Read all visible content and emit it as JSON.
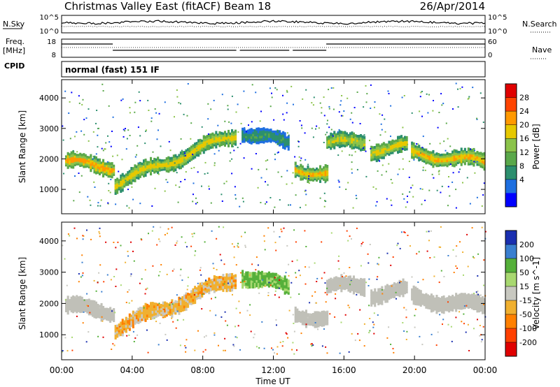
{
  "header": {
    "title": "Christmas Valley East (fitACF)",
    "beam": "Beam 18",
    "date": "26/Apr/2014"
  },
  "params": {
    "nsky_label": "N.Sky",
    "nsky_ticks": [
      "10^5",
      "10^0"
    ],
    "nsky_right_ticks": [
      "10^5",
      "10^0"
    ],
    "nsearch_label": "N.Search",
    "freq_label": "Freq.",
    "freq_unit": "[MHz]",
    "freq_ticks": [
      "18",
      "8"
    ],
    "nave_label": "Nave",
    "nave_ticks": [
      "60",
      "0"
    ],
    "cpid_label": "CPID",
    "cpid_text": "normal (fast) 151 IF"
  },
  "chart_data": [
    {
      "type": "heatmap",
      "title": "Power",
      "xlabel": "Time UT",
      "ylabel": "Slant Range [km]",
      "xlim": [
        "00:00",
        "24:00"
      ],
      "ylim": [
        200,
        4600
      ],
      "x_ticks": [
        "00:00",
        "04:00",
        "08:00",
        "12:00",
        "16:00",
        "20:00",
        "00:00"
      ],
      "y_ticks": [
        1000,
        2000,
        3000,
        4000
      ],
      "colorbar": {
        "label": "Power [dB]",
        "ticks": [
          4,
          8,
          12,
          16,
          20,
          24,
          28
        ],
        "colors": [
          "#0000ff",
          "#1e6fe0",
          "#2c8f6e",
          "#5aa84a",
          "#8bc34a",
          "#e6c800",
          "#ff9900",
          "#ff4400",
          "#e00000"
        ]
      },
      "data_gaps_hours": [
        [
          9.9,
          10.1
        ],
        [
          12.9,
          13.1
        ],
        [
          17.2,
          17.3
        ],
        [
          19.6,
          19.7
        ]
      ],
      "bands": [
        {
          "t_start": 0.2,
          "t_end": 2.9,
          "range_start": 1900,
          "range_end": 1750,
          "level_db": 26
        },
        {
          "t_start": 3.0,
          "t_end": 9.8,
          "range_start": 1200,
          "range_end": 2800,
          "level_db": 22
        },
        {
          "t_start": 10.2,
          "t_end": 12.8,
          "range_start": 2900,
          "range_end": 2500,
          "level_db": 10
        },
        {
          "t_start": 13.2,
          "t_end": 15.0,
          "range_start": 1700,
          "range_end": 1500,
          "level_db": 24
        },
        {
          "t_start": 15.0,
          "t_end": 17.1,
          "range_start": 2500,
          "range_end": 2600,
          "level_db": 20
        },
        {
          "t_start": 17.5,
          "t_end": 19.5,
          "range_start": 2300,
          "range_end": 2400,
          "level_db": 22
        },
        {
          "t_start": 19.8,
          "t_end": 23.9,
          "range_start": 2200,
          "range_end": 1900,
          "level_db": 24
        }
      ]
    },
    {
      "type": "heatmap",
      "title": "Velocity",
      "xlabel": "Time UT",
      "ylabel": "Slant Range [km]",
      "xlim": [
        "00:00",
        "24:00"
      ],
      "ylim": [
        200,
        4600
      ],
      "x_ticks": [
        "00:00",
        "04:00",
        "08:00",
        "12:00",
        "16:00",
        "20:00",
        "00:00"
      ],
      "y_ticks": [
        1000,
        2000,
        3000,
        4000
      ],
      "colorbar": {
        "label": "Velocity [m s^-1]",
        "ticks": [
          200,
          100,
          50,
          15,
          -15,
          -50,
          -100,
          -200
        ],
        "colors": [
          "#1a2fb0",
          "#3a7fd0",
          "#55b03a",
          "#a8d870",
          "#c8c8c0",
          "#f0b030",
          "#ff8000",
          "#ff4000",
          "#e00000"
        ]
      },
      "ground_scatter_color": "#c0c0b8",
      "bands": [
        {
          "t_start": 0.2,
          "t_end": 2.9,
          "range_start": 1900,
          "range_end": 1750,
          "velocity": 0
        },
        {
          "t_start": 3.0,
          "t_end": 9.8,
          "range_start": 1200,
          "range_end": 2800,
          "velocity": -30
        },
        {
          "t_start": 10.2,
          "t_end": 12.8,
          "range_start": 2900,
          "range_end": 2500,
          "velocity": 60
        },
        {
          "t_start": 13.2,
          "t_end": 15.0,
          "range_start": 1700,
          "range_end": 1500,
          "velocity": 0
        },
        {
          "t_start": 15.0,
          "t_end": 17.1,
          "range_start": 2500,
          "range_end": 2600,
          "velocity": 0
        },
        {
          "t_start": 17.5,
          "t_end": 19.5,
          "range_start": 2300,
          "range_end": 2400,
          "velocity": 0
        },
        {
          "t_start": 19.8,
          "t_end": 23.9,
          "range_start": 2200,
          "range_end": 1900,
          "velocity": 0
        }
      ]
    }
  ]
}
